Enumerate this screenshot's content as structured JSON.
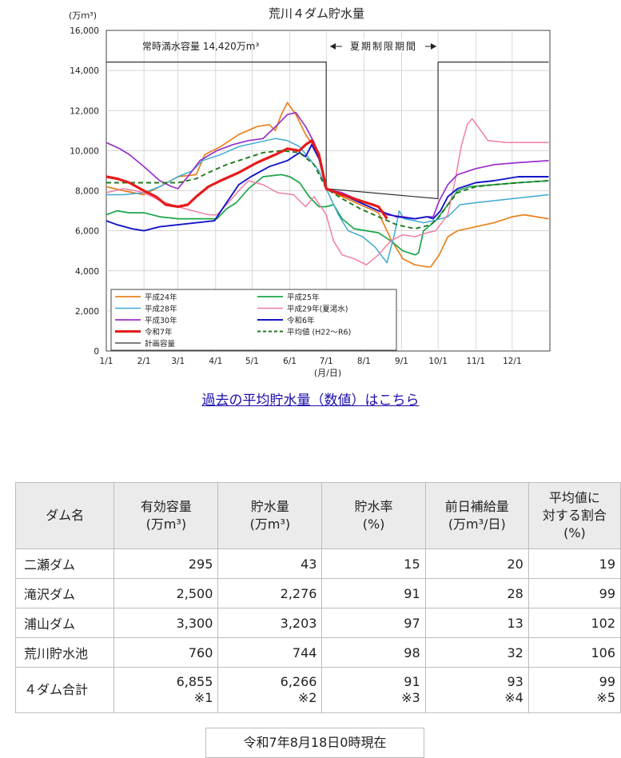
{
  "chart_data": {
    "type": "line",
    "title": "荒川４ダム貯水量",
    "y_unit": "(万ｍ³)",
    "xlabel": "(月/日)",
    "ylim": [
      0,
      16000
    ],
    "y_ticks": [
      "0",
      "2,000",
      "4,000",
      "6,000",
      "8,000",
      "10,000",
      "12,000",
      "14,000",
      "16,000"
    ],
    "x_ticks": [
      "1/1",
      "2/1",
      "3/1",
      "4/1",
      "5/1",
      "6/1",
      "7/1",
      "8/1",
      "9/1",
      "10/1",
      "11/1",
      "12/1"
    ],
    "annotations": {
      "full_capacity": "常時満水容量 14,420万m³",
      "summer_period": "夏期制限期間"
    },
    "series": [
      {
        "name": "平成24年",
        "color": "#e8821e",
        "dash": "",
        "width": 1.7,
        "points": [
          [
            1,
            8200
          ],
          [
            15,
            8000
          ],
          [
            32,
            7800
          ],
          [
            45,
            8200
          ],
          [
            60,
            8700
          ],
          [
            75,
            8800
          ],
          [
            82,
            9800
          ],
          [
            95,
            10200
          ],
          [
            110,
            10800
          ],
          [
            125,
            11200
          ],
          [
            135,
            11300
          ],
          [
            140,
            11000
          ],
          [
            145,
            11800
          ],
          [
            150,
            12400
          ],
          [
            157,
            11800
          ],
          [
            165,
            10800
          ],
          [
            172,
            10200
          ],
          [
            177,
            9500
          ],
          [
            182,
            8100
          ],
          [
            195,
            7700
          ],
          [
            210,
            7300
          ],
          [
            225,
            6900
          ],
          [
            235,
            5600
          ],
          [
            245,
            4600
          ],
          [
            255,
            4300
          ],
          [
            265,
            4200
          ],
          [
            268,
            4200
          ],
          [
            275,
            4800
          ],
          [
            282,
            5700
          ],
          [
            290,
            6000
          ],
          [
            305,
            6200
          ],
          [
            320,
            6400
          ],
          [
            335,
            6700
          ],
          [
            345,
            6800
          ],
          [
            365,
            6600
          ]
        ]
      },
      {
        "name": "平成25年",
        "color": "#1aa54a",
        "dash": "",
        "width": 1.7,
        "points": [
          [
            1,
            6800
          ],
          [
            10,
            7000
          ],
          [
            20,
            6900
          ],
          [
            32,
            6900
          ],
          [
            45,
            6700
          ],
          [
            60,
            6600
          ],
          [
            75,
            6600
          ],
          [
            92,
            6600
          ],
          [
            100,
            7100
          ],
          [
            108,
            7400
          ],
          [
            118,
            8100
          ],
          [
            130,
            8700
          ],
          [
            145,
            8800
          ],
          [
            152,
            8700
          ],
          [
            160,
            8400
          ],
          [
            168,
            7700
          ],
          [
            176,
            7200
          ],
          [
            182,
            7200
          ],
          [
            188,
            7300
          ],
          [
            195,
            6600
          ],
          [
            205,
            6100
          ],
          [
            215,
            6000
          ],
          [
            225,
            5900
          ],
          [
            235,
            5500
          ],
          [
            245,
            5000
          ],
          [
            255,
            4800
          ],
          [
            258,
            4900
          ],
          [
            262,
            6000
          ],
          [
            272,
            6500
          ],
          [
            282,
            7300
          ],
          [
            290,
            8000
          ],
          [
            300,
            8200
          ],
          [
            320,
            8300
          ],
          [
            340,
            8400
          ],
          [
            365,
            8500
          ]
        ]
      },
      {
        "name": "平成28年",
        "color": "#3fa9d1",
        "dash": "",
        "width": 1.5,
        "points": [
          [
            1,
            7800
          ],
          [
            15,
            7800
          ],
          [
            32,
            7900
          ],
          [
            45,
            8200
          ],
          [
            60,
            8700
          ],
          [
            72,
            9000
          ],
          [
            80,
            9500
          ],
          [
            95,
            9800
          ],
          [
            110,
            10200
          ],
          [
            125,
            10400
          ],
          [
            140,
            10600
          ],
          [
            150,
            10500
          ],
          [
            160,
            10200
          ],
          [
            168,
            9600
          ],
          [
            176,
            9000
          ],
          [
            182,
            8100
          ],
          [
            192,
            6800
          ],
          [
            200,
            6000
          ],
          [
            212,
            5700
          ],
          [
            222,
            5200
          ],
          [
            232,
            4400
          ],
          [
            238,
            5800
          ],
          [
            242,
            7000
          ],
          [
            246,
            6600
          ],
          [
            255,
            6500
          ],
          [
            262,
            6400
          ],
          [
            270,
            6500
          ],
          [
            282,
            6700
          ],
          [
            292,
            7300
          ],
          [
            305,
            7400
          ],
          [
            320,
            7500
          ],
          [
            335,
            7600
          ],
          [
            350,
            7700
          ],
          [
            365,
            7800
          ]
        ]
      },
      {
        "name": "平成29年(夏渇水)",
        "color": "#f07fa8",
        "dash": "",
        "width": 1.5,
        "points": [
          [
            1,
            7900
          ],
          [
            15,
            8100
          ],
          [
            25,
            8000
          ],
          [
            32,
            7900
          ],
          [
            45,
            7500
          ],
          [
            60,
            7200
          ],
          [
            72,
            7000
          ],
          [
            85,
            6800
          ],
          [
            92,
            6800
          ],
          [
            100,
            7300
          ],
          [
            110,
            8000
          ],
          [
            118,
            8500
          ],
          [
            130,
            8300
          ],
          [
            142,
            7900
          ],
          [
            155,
            7800
          ],
          [
            165,
            7200
          ],
          [
            172,
            7700
          ],
          [
            182,
            6800
          ],
          [
            188,
            5500
          ],
          [
            195,
            4800
          ],
          [
            205,
            4600
          ],
          [
            215,
            4300
          ],
          [
            225,
            4800
          ],
          [
            235,
            5500
          ],
          [
            245,
            5800
          ],
          [
            255,
            5700
          ],
          [
            265,
            5900
          ],
          [
            272,
            6000
          ],
          [
            282,
            6800
          ],
          [
            288,
            8500
          ],
          [
            293,
            10200
          ],
          [
            298,
            11300
          ],
          [
            302,
            11600
          ],
          [
            308,
            11100
          ],
          [
            315,
            10500
          ],
          [
            330,
            10400
          ],
          [
            345,
            10400
          ],
          [
            365,
            10400
          ]
        ]
      },
      {
        "name": "平成30年",
        "color": "#9b2fc9",
        "dash": "",
        "width": 1.7,
        "points": [
          [
            1,
            10400
          ],
          [
            12,
            10100
          ],
          [
            20,
            9800
          ],
          [
            32,
            9200
          ],
          [
            45,
            8500
          ],
          [
            55,
            8200
          ],
          [
            60,
            8100
          ],
          [
            68,
            8700
          ],
          [
            78,
            9500
          ],
          [
            92,
            10000
          ],
          [
            105,
            10300
          ],
          [
            118,
            10500
          ],
          [
            130,
            10600
          ],
          [
            142,
            11300
          ],
          [
            150,
            11800
          ],
          [
            157,
            11900
          ],
          [
            165,
            11200
          ],
          [
            172,
            10400
          ],
          [
            176,
            9800
          ],
          [
            182,
            8100
          ],
          [
            195,
            7900
          ],
          [
            210,
            7500
          ],
          [
            222,
            7300
          ],
          [
            232,
            6800
          ],
          [
            245,
            6700
          ],
          [
            255,
            6600
          ],
          [
            265,
            6700
          ],
          [
            270,
            6700
          ],
          [
            275,
            7500
          ],
          [
            282,
            8300
          ],
          [
            290,
            8800
          ],
          [
            305,
            9100
          ],
          [
            320,
            9300
          ],
          [
            340,
            9400
          ],
          [
            365,
            9500
          ]
        ]
      },
      {
        "name": "令和6年",
        "color": "#1515c8",
        "dash": "",
        "width": 1.9,
        "points": [
          [
            1,
            6500
          ],
          [
            10,
            6300
          ],
          [
            22,
            6100
          ],
          [
            32,
            6000
          ],
          [
            45,
            6200
          ],
          [
            60,
            6300
          ],
          [
            75,
            6400
          ],
          [
            90,
            6500
          ],
          [
            100,
            7400
          ],
          [
            110,
            8300
          ],
          [
            120,
            8700
          ],
          [
            135,
            9200
          ],
          [
            150,
            9500
          ],
          [
            160,
            9900
          ],
          [
            165,
            9700
          ],
          [
            170,
            10300
          ],
          [
            176,
            9600
          ],
          [
            182,
            8100
          ],
          [
            195,
            7800
          ],
          [
            210,
            7400
          ],
          [
            225,
            7000
          ],
          [
            240,
            6700
          ],
          [
            255,
            6600
          ],
          [
            265,
            6700
          ],
          [
            270,
            6600
          ],
          [
            276,
            7000
          ],
          [
            282,
            7700
          ],
          [
            290,
            8100
          ],
          [
            305,
            8400
          ],
          [
            320,
            8500
          ],
          [
            340,
            8700
          ],
          [
            365,
            8700
          ]
        ]
      },
      {
        "name": "令和7年",
        "color": "#e61a1a",
        "dash": "",
        "width": 3.2,
        "points": [
          [
            1,
            8700
          ],
          [
            10,
            8600
          ],
          [
            20,
            8400
          ],
          [
            32,
            8000
          ],
          [
            42,
            7700
          ],
          [
            50,
            7300
          ],
          [
            60,
            7200
          ],
          [
            68,
            7300
          ],
          [
            75,
            7700
          ],
          [
            85,
            8200
          ],
          [
            95,
            8500
          ],
          [
            110,
            8900
          ],
          [
            125,
            9400
          ],
          [
            140,
            9800
          ],
          [
            150,
            10100
          ],
          [
            160,
            10000
          ],
          [
            165,
            10300
          ],
          [
            170,
            10500
          ],
          [
            176,
            9800
          ],
          [
            182,
            8100
          ],
          [
            195,
            7800
          ],
          [
            205,
            7600
          ],
          [
            215,
            7400
          ],
          [
            225,
            7200
          ],
          [
            232,
            6600
          ]
        ]
      },
      {
        "name": "平均値 (H22～R6)",
        "color": "#1f7a1f",
        "dash": "6,4",
        "width": 1.9,
        "points": [
          [
            1,
            8400
          ],
          [
            15,
            8400
          ],
          [
            32,
            8400
          ],
          [
            45,
            8400
          ],
          [
            60,
            8400
          ],
          [
            75,
            8600
          ],
          [
            85,
            8900
          ],
          [
            100,
            9300
          ],
          [
            115,
            9600
          ],
          [
            130,
            9900
          ],
          [
            145,
            10000
          ],
          [
            160,
            9900
          ],
          [
            172,
            9300
          ],
          [
            182,
            8100
          ],
          [
            195,
            7600
          ],
          [
            210,
            7100
          ],
          [
            225,
            6700
          ],
          [
            240,
            6300
          ],
          [
            255,
            6100
          ],
          [
            268,
            6300
          ],
          [
            275,
            6700
          ],
          [
            282,
            7300
          ],
          [
            290,
            7900
          ],
          [
            305,
            8200
          ],
          [
            320,
            8300
          ],
          [
            340,
            8400
          ],
          [
            365,
            8500
          ]
        ]
      },
      {
        "name": "計画容量",
        "color": "#333333",
        "dash": "",
        "width": 1.2,
        "points": [
          [
            1,
            14420
          ],
          [
            182,
            14420
          ],
          [
            182,
            8100
          ],
          [
            274,
            7600
          ],
          [
            274,
            14420
          ],
          [
            365,
            14420
          ]
        ]
      }
    ]
  },
  "link_text": "過去の平均貯水量（数値）はこちら",
  "table": {
    "headers": [
      [
        "ダム名"
      ],
      [
        "有効容量",
        "(万m³)"
      ],
      [
        "貯水量",
        "(万m³)"
      ],
      [
        "貯水率",
        "(%)"
      ],
      [
        "前日補給量",
        "(万m³/日)"
      ],
      [
        "平均値に",
        "対する割合",
        "(%)"
      ]
    ],
    "rows": [
      [
        "二瀬ダム",
        "295",
        "43",
        "15",
        "20",
        "19"
      ],
      [
        "滝沢ダム",
        "2,500",
        "2,276",
        "91",
        "28",
        "99"
      ],
      [
        "浦山ダム",
        "3,300",
        "3,203",
        "97",
        "13",
        "102"
      ],
      [
        "荒川貯水池",
        "760",
        "744",
        "98",
        "32",
        "106"
      ]
    ],
    "total_row": [
      [
        "４ダム合計"
      ],
      [
        "6,855",
        "※1"
      ],
      [
        "6,266",
        "※2"
      ],
      [
        "91",
        "※3"
      ],
      [
        "93",
        "※4"
      ],
      [
        "99",
        "※5"
      ]
    ]
  },
  "timestamp": "令和7年8月18日0時現在"
}
